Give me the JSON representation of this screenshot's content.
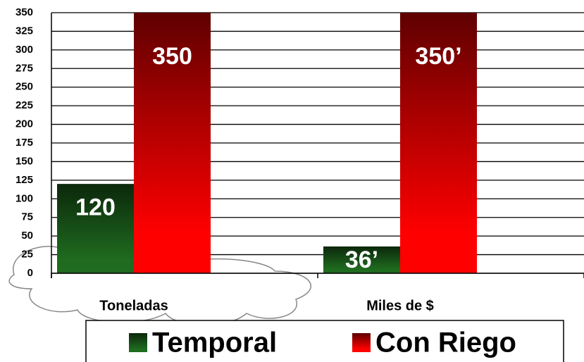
{
  "chart_data": {
    "type": "bar",
    "categories": [
      "Toneladas",
      "Miles de $"
    ],
    "series": [
      {
        "name": "Temporal",
        "color": "#1f6b1f",
        "values": [
          120,
          36
        ],
        "value_labels": [
          "120",
          "36’"
        ]
      },
      {
        "name": "Con Riego",
        "color": "#ff0000",
        "values": [
          350,
          350
        ],
        "value_labels": [
          "350",
          "350’"
        ]
      }
    ],
    "ylim": [
      0,
      350
    ],
    "yticks": [
      0,
      25,
      50,
      75,
      100,
      125,
      150,
      175,
      200,
      225,
      250,
      275,
      300,
      325,
      350
    ],
    "grid": true,
    "legend": "bottom"
  }
}
